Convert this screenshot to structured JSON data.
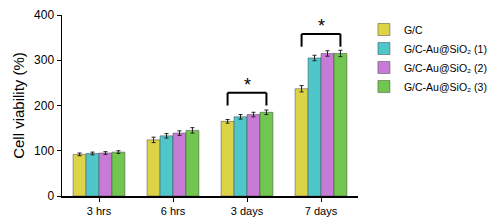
{
  "chart_data": {
    "type": "bar",
    "y_label": "Cell viability (%)",
    "categories": [
      "3 hrs",
      "6 hrs",
      "3 days",
      "7 days"
    ],
    "series": [
      {
        "name": "G/C",
        "color": "#ddd347",
        "values": [
          92,
          124,
          165,
          237
        ],
        "errors": [
          3,
          6,
          4,
          7
        ]
      },
      {
        "name": "G/C-Au@SiO₂ (1)",
        "color": "#4fc6c9",
        "values": [
          94,
          133,
          175,
          305
        ],
        "errors": [
          3,
          5,
          5,
          6
        ]
      },
      {
        "name": "G/C-Au@SiO₂ (2)",
        "color": "#c77ad6",
        "values": [
          95,
          139,
          180,
          315
        ],
        "errors": [
          3,
          5,
          5,
          6
        ]
      },
      {
        "name": "G/C-Au@SiO₂ (3)",
        "color": "#70c64f",
        "values": [
          97,
          145,
          185,
          315
        ],
        "errors": [
          3,
          6,
          5,
          7
        ]
      }
    ],
    "ylim": [
      0,
      400
    ],
    "yticks": [
      0,
      100,
      200,
      300,
      400
    ],
    "grid": false,
    "legend": "right",
    "annotations": [
      {
        "category": "3 days",
        "text": "*",
        "y": 228
      },
      {
        "category": "7 days",
        "text": "*",
        "y": 358
      }
    ]
  }
}
